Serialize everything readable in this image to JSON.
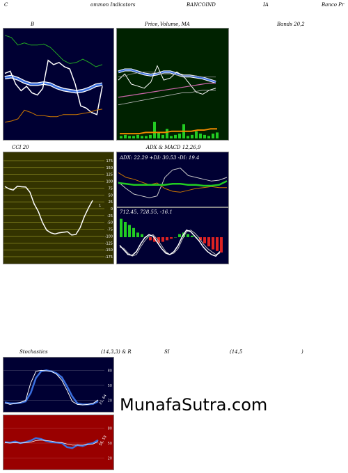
{
  "header": {
    "left": "C",
    "common_indicators": "ommon Indicators",
    "symbol_a": "BANCOIND",
    "symbol_b": "IA",
    "company": "Banco Pr"
  },
  "titles": {
    "bollinger": "B",
    "price_ma": "Price,",
    "volume_ma": "Volume, MA",
    "bands": "Bands 20,2",
    "cci": "CCI 20",
    "adx_macd": "ADX  & MACD 12,26,9",
    "stoch_a": "Stochastics",
    "stoch_b": "(14,3,3) & R",
    "stoch_c": "SI",
    "stoch_d": "(14,5",
    "stoch_e": ")"
  },
  "adx_text": "ADX: 22.29  +DI: 30.53 -DI: 19.4",
  "macd_text": "712.45,  728.55,  -16.1",
  "watermark": "MunafaSutra.com",
  "cci_ticks": [
    "175",
    "150",
    "125",
    "100",
    "75",
    "50",
    "25",
    "0",
    "-25",
    "-50",
    "-75",
    "-100",
    "-125",
    "-150",
    "-175"
  ],
  "stoch_ticks": [
    "80",
    "50",
    "20"
  ],
  "rsi_ticks": [
    "80",
    "50",
    "20"
  ],
  "cci_marker": "1",
  "stoch_marker": "21, 64",
  "rsi_marker": "56, 53",
  "colors": {
    "navy_bg": "#000033",
    "green_bg": "#002200",
    "olive_bg": "#333300",
    "red_bg": "#990000",
    "blue_line": "#3a6fdf",
    "green_line": "#22cc22",
    "orange_line": "#cc7700"
  },
  "chart_data": [
    {
      "type": "line",
      "panel": "bollinger",
      "series": [
        {
          "values": [
            95,
            93,
            86,
            88,
            86,
            86,
            87,
            84,
            78,
            72,
            69,
            70,
            73,
            70,
            66,
            68
          ]
        },
        {
          "values": [
            5,
            6,
            5,
            4,
            4,
            4,
            4,
            4,
            4,
            4,
            5,
            5,
            6,
            7,
            8,
            8
          ]
        },
        {
          "values": [
            5,
            6,
            6,
            5,
            5,
            6,
            6,
            5,
            4,
            4,
            4,
            4,
            5,
            6,
            7,
            7
          ]
        },
        {
          "values": [
            5,
            6,
            6,
            5,
            5,
            6,
            6,
            5,
            4,
            4,
            4,
            4,
            5,
            6,
            7,
            7
          ]
        },
        {
          "values": [
            65,
            38,
            42,
            38,
            41,
            28,
            26,
            28,
            29,
            28,
            29,
            29,
            30,
            32,
            25,
            12
          ]
        },
        {
          "values": [
            5,
            6,
            8,
            16,
            14,
            11,
            11,
            10,
            10,
            12,
            12,
            12,
            13,
            14,
            16,
            17
          ]
        },
        {
          "values": [
            5,
            6,
            5,
            4,
            4,
            4,
            4,
            4,
            4,
            4,
            5,
            5,
            6,
            7,
            8,
            8
          ]
        }
      ]
    },
    {
      "type": "line",
      "panel": "price_ma",
      "series": [
        {
          "values": [
            78,
            80,
            72,
            74,
            66,
            58,
            54,
            50,
            48,
            54,
            45,
            48,
            50,
            44,
            46,
            48
          ]
        },
        {
          "values": [
            55,
            56,
            58,
            59,
            60,
            60,
            59,
            58,
            58,
            57,
            56,
            56,
            56,
            55,
            55,
            55
          ]
        },
        {
          "values": [
            46,
            48,
            50,
            52,
            54,
            56,
            58,
            60,
            62,
            64,
            66,
            66,
            68,
            70,
            70,
            70
          ]
        },
        {
          "values": [
            35,
            36,
            37,
            38,
            39,
            40,
            41,
            42,
            43,
            44,
            45,
            46,
            47,
            48,
            49,
            49
          ]
        }
      ]
    },
    {
      "type": "bar",
      "panel": "volume",
      "values": [
        2,
        3,
        2,
        2,
        3,
        2,
        2,
        3,
        14,
        5,
        3,
        8,
        2,
        3,
        4,
        12,
        2,
        3,
        6,
        4,
        3,
        2,
        4,
        5
      ]
    },
    {
      "type": "line",
      "panel": "cci",
      "series": [
        {
          "values": [
            81,
            72,
            68,
            82,
            80,
            79,
            60,
            18,
            -10,
            -50,
            -78,
            -88,
            -92,
            -88,
            -86,
            -84,
            -96,
            -94,
            -70,
            -30,
            2,
            30
          ]
        }
      ]
    },
    {
      "type": "line",
      "panel": "adx",
      "series": [
        {
          "name": "ADX",
          "values": [
            22,
            21,
            20,
            20,
            21,
            21,
            22,
            22,
            23,
            23,
            22,
            21,
            21,
            22,
            22
          ]
        },
        {
          "name": "+DI",
          "values": [
            25,
            18,
            12,
            10,
            8,
            10,
            30,
            38,
            40,
            32,
            30,
            28,
            26,
            27,
            30
          ]
        },
        {
          "name": "-DI",
          "values": [
            35,
            30,
            28,
            25,
            22,
            24,
            18,
            15,
            14,
            16,
            18,
            19,
            20,
            19,
            19
          ]
        }
      ]
    },
    {
      "type": "bar",
      "panel": "macd",
      "values": [
        12,
        10,
        8,
        6,
        3,
        2,
        0,
        -2,
        -3,
        -4,
        -3,
        -2,
        -1,
        0,
        2,
        3,
        2,
        1,
        0,
        -2,
        -4,
        -6,
        -8,
        -9,
        -10
      ]
    },
    {
      "type": "line",
      "panel": "stochastics",
      "series": [
        {
          "values": [
            15,
            12,
            14,
            16,
            20,
            55,
            78,
            80,
            79,
            78,
            72,
            60,
            40,
            18,
            12,
            11,
            12,
            14,
            21
          ]
        },
        {
          "values": [
            16,
            14,
            14,
            15,
            18,
            35,
            65,
            78,
            80,
            78,
            74,
            66,
            48,
            28,
            14,
            12,
            12,
            13,
            18
          ]
        }
      ]
    },
    {
      "type": "line",
      "panel": "rsi",
      "series": [
        {
          "values": [
            52,
            51,
            53,
            50,
            52,
            55,
            60,
            58,
            54,
            52,
            51,
            50,
            42,
            40,
            46,
            44,
            48,
            50,
            56
          ]
        },
        {
          "values": [
            51,
            50,
            51,
            50,
            51,
            52,
            55,
            56,
            55,
            54,
            52,
            51,
            48,
            46,
            46,
            46,
            47,
            48,
            53
          ]
        }
      ]
    }
  ]
}
